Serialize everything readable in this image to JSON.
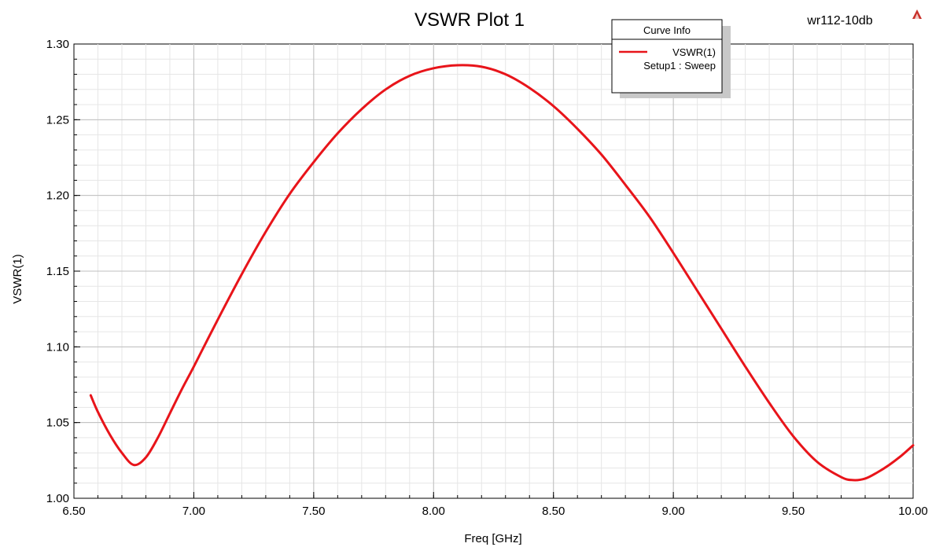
{
  "chart_data": {
    "type": "line",
    "title": "VSWR Plot 1",
    "project_label": "wr112-10db",
    "xlabel": "Freq [GHz]",
    "ylabel": "VSWR(1)",
    "xlim": [
      6.5,
      10.0
    ],
    "ylim": [
      1.0,
      1.3
    ],
    "x_ticks": [
      "6.50",
      "7.00",
      "7.50",
      "8.00",
      "8.50",
      "9.00",
      "9.50",
      "10.00"
    ],
    "y_ticks": [
      "1.00",
      "1.05",
      "1.10",
      "1.15",
      "1.20",
      "1.25",
      "1.30"
    ],
    "grid": true,
    "legend": {
      "title": "Curve Info",
      "placement": "top-right",
      "entries": [
        {
          "name": "VSWR(1)",
          "sub": "Setup1 : Sweep"
        }
      ]
    },
    "series": [
      {
        "name": "VSWR(1)",
        "color": "#e8141a",
        "x": [
          6.57,
          6.6,
          6.65,
          6.7,
          6.75,
          6.8,
          6.85,
          6.9,
          6.95,
          7.0,
          7.1,
          7.2,
          7.3,
          7.4,
          7.5,
          7.6,
          7.7,
          7.8,
          7.9,
          8.0,
          8.1,
          8.2,
          8.3,
          8.4,
          8.5,
          8.6,
          8.7,
          8.8,
          8.9,
          9.0,
          9.1,
          9.2,
          9.3,
          9.4,
          9.5,
          9.6,
          9.7,
          9.75,
          9.8,
          9.85,
          9.9,
          9.95,
          10.0
        ],
        "y": [
          1.068,
          1.057,
          1.042,
          1.03,
          1.022,
          1.027,
          1.04,
          1.056,
          1.072,
          1.087,
          1.118,
          1.148,
          1.176,
          1.201,
          1.222,
          1.241,
          1.257,
          1.27,
          1.279,
          1.284,
          1.286,
          1.285,
          1.28,
          1.271,
          1.259,
          1.244,
          1.227,
          1.207,
          1.186,
          1.162,
          1.137,
          1.112,
          1.087,
          1.063,
          1.041,
          1.024,
          1.014,
          1.012,
          1.013,
          1.017,
          1.022,
          1.028,
          1.035
        ]
      }
    ]
  }
}
